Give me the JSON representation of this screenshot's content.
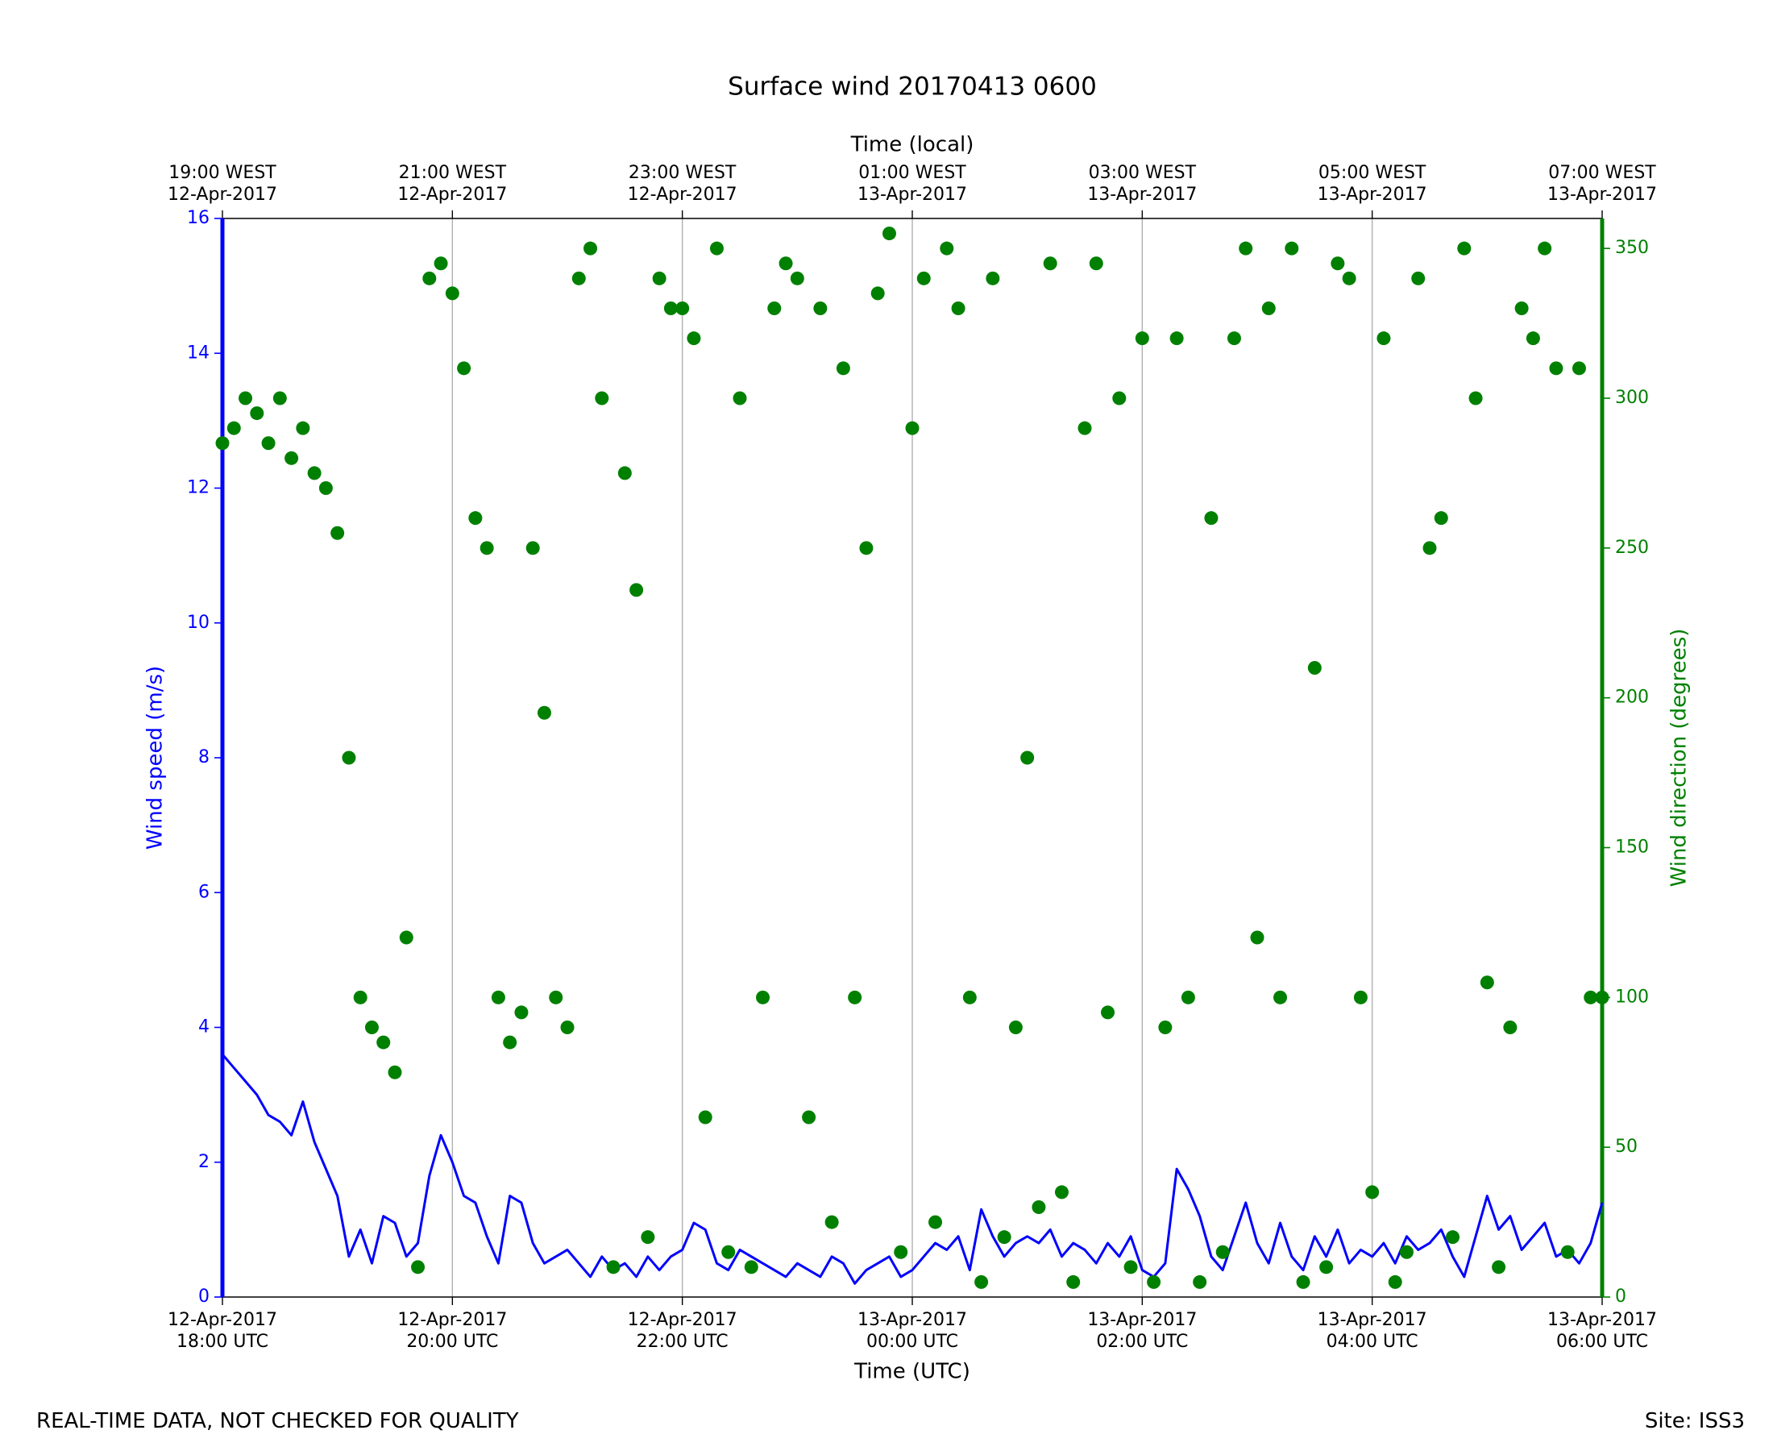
{
  "chart_data": {
    "type": "line+scatter",
    "title": "Surface wind 20170413 0600",
    "xlabel": "Time (UTC)",
    "x2label": "Time (local)",
    "ylabel": "Wind speed (m/s)",
    "y2label": "Wind direction (degrees)",
    "footer_left": "REAL-TIME DATA, NOT CHECKED FOR QUALITY",
    "footer_right": "Site: ISS3",
    "xlim": [
      "2017-04-12T18:00",
      "2017-04-13T06:00"
    ],
    "xticks": [
      {
        "value": "2017-04-12T18:00",
        "label": "12-Apr-2017\n18:00 UTC"
      },
      {
        "value": "2017-04-12T20:00",
        "label": "12-Apr-2017\n20:00 UTC"
      },
      {
        "value": "2017-04-12T22:00",
        "label": "12-Apr-2017\n22:00 UTC"
      },
      {
        "value": "2017-04-13T00:00",
        "label": "13-Apr-2017\n00:00 UTC"
      },
      {
        "value": "2017-04-13T02:00",
        "label": "13-Apr-2017\n02:00 UTC"
      },
      {
        "value": "2017-04-13T04:00",
        "label": "13-Apr-2017\n04:00 UTC"
      },
      {
        "value": "2017-04-13T06:00",
        "label": "13-Apr-2017\n06:00 UTC"
      }
    ],
    "x2ticks": [
      {
        "value": "2017-04-12T18:00",
        "label": "19:00 WEST\n12-Apr-2017"
      },
      {
        "value": "2017-04-12T20:00",
        "label": "21:00 WEST\n12-Apr-2017"
      },
      {
        "value": "2017-04-12T22:00",
        "label": "23:00 WEST\n12-Apr-2017"
      },
      {
        "value": "2017-04-13T00:00",
        "label": "01:00 WEST\n13-Apr-2017"
      },
      {
        "value": "2017-04-13T02:00",
        "label": "03:00 WEST\n13-Apr-2017"
      },
      {
        "value": "2017-04-13T04:00",
        "label": "05:00 WEST\n13-Apr-2017"
      },
      {
        "value": "2017-04-13T06:00",
        "label": "07:00 WEST\n13-Apr-2017"
      }
    ],
    "ylim": [
      0,
      16
    ],
    "yticks": [
      0,
      2,
      4,
      6,
      8,
      10,
      12,
      14,
      16
    ],
    "y2lim": [
      0,
      360
    ],
    "y2ticks": [
      0,
      50,
      100,
      150,
      200,
      250,
      300,
      350
    ],
    "grid": "x",
    "x": [
      "2017-04-12T18:00",
      "2017-04-12T18:06",
      "2017-04-12T18:12",
      "2017-04-12T18:18",
      "2017-04-12T18:24",
      "2017-04-12T18:30",
      "2017-04-12T18:36",
      "2017-04-12T18:42",
      "2017-04-12T18:48",
      "2017-04-12T18:54",
      "2017-04-12T19:00",
      "2017-04-12T19:06",
      "2017-04-12T19:12",
      "2017-04-12T19:18",
      "2017-04-12T19:24",
      "2017-04-12T19:30",
      "2017-04-12T19:36",
      "2017-04-12T19:42",
      "2017-04-12T19:48",
      "2017-04-12T19:54",
      "2017-04-12T20:00",
      "2017-04-12T20:06",
      "2017-04-12T20:12",
      "2017-04-12T20:18",
      "2017-04-12T20:24",
      "2017-04-12T20:30",
      "2017-04-12T20:36",
      "2017-04-12T20:42",
      "2017-04-12T20:48",
      "2017-04-12T20:54",
      "2017-04-12T21:00",
      "2017-04-12T21:06",
      "2017-04-12T21:12",
      "2017-04-12T21:18",
      "2017-04-12T21:24",
      "2017-04-12T21:30",
      "2017-04-12T21:36",
      "2017-04-12T21:42",
      "2017-04-12T21:48",
      "2017-04-12T21:54",
      "2017-04-12T22:00",
      "2017-04-12T22:06",
      "2017-04-12T22:12",
      "2017-04-12T22:18",
      "2017-04-12T22:24",
      "2017-04-12T22:30",
      "2017-04-12T22:36",
      "2017-04-12T22:42",
      "2017-04-12T22:48",
      "2017-04-12T22:54",
      "2017-04-12T23:00",
      "2017-04-12T23:06",
      "2017-04-12T23:12",
      "2017-04-12T23:18",
      "2017-04-12T23:24",
      "2017-04-12T23:30",
      "2017-04-12T23:36",
      "2017-04-12T23:42",
      "2017-04-12T23:48",
      "2017-04-12T23:54",
      "2017-04-13T00:00",
      "2017-04-13T00:06",
      "2017-04-13T00:12",
      "2017-04-13T00:18",
      "2017-04-13T00:24",
      "2017-04-13T00:30",
      "2017-04-13T00:36",
      "2017-04-13T00:42",
      "2017-04-13T00:48",
      "2017-04-13T00:54",
      "2017-04-13T01:00",
      "2017-04-13T01:06",
      "2017-04-13T01:12",
      "2017-04-13T01:18",
      "2017-04-13T01:24",
      "2017-04-13T01:30",
      "2017-04-13T01:36",
      "2017-04-13T01:42",
      "2017-04-13T01:48",
      "2017-04-13T01:54",
      "2017-04-13T02:00",
      "2017-04-13T02:06",
      "2017-04-13T02:12",
      "2017-04-13T02:18",
      "2017-04-13T02:24",
      "2017-04-13T02:30",
      "2017-04-13T02:36",
      "2017-04-13T02:42",
      "2017-04-13T02:48",
      "2017-04-13T02:54",
      "2017-04-13T03:00",
      "2017-04-13T03:06",
      "2017-04-13T03:12",
      "2017-04-13T03:18",
      "2017-04-13T03:24",
      "2017-04-13T03:30",
      "2017-04-13T03:36",
      "2017-04-13T03:42",
      "2017-04-13T03:48",
      "2017-04-13T03:54",
      "2017-04-13T04:00",
      "2017-04-13T04:06",
      "2017-04-13T04:12",
      "2017-04-13T04:18",
      "2017-04-13T04:24",
      "2017-04-13T04:30",
      "2017-04-13T04:36",
      "2017-04-13T04:42",
      "2017-04-13T04:48",
      "2017-04-13T04:54",
      "2017-04-13T05:00",
      "2017-04-13T05:06",
      "2017-04-13T05:12",
      "2017-04-13T05:18",
      "2017-04-13T05:24",
      "2017-04-13T05:30",
      "2017-04-13T05:36",
      "2017-04-13T05:42",
      "2017-04-13T05:48",
      "2017-04-13T05:54",
      "2017-04-13T06:00"
    ],
    "series": [
      {
        "name": "Wind speed",
        "type": "line",
        "color": "#0000ff",
        "values": [
          3.6,
          3.4,
          3.2,
          3.0,
          2.7,
          2.6,
          2.4,
          2.9,
          2.3,
          1.9,
          1.5,
          0.6,
          1.0,
          0.5,
          1.2,
          1.1,
          0.6,
          0.8,
          1.8,
          2.4,
          2.0,
          1.5,
          1.4,
          0.9,
          0.5,
          1.5,
          1.4,
          0.8,
          0.5,
          0.6,
          0.7,
          0.5,
          0.3,
          0.6,
          0.4,
          0.5,
          0.3,
          0.6,
          0.4,
          0.6,
          0.7,
          1.1,
          1.0,
          0.5,
          0.4,
          0.7,
          0.6,
          0.5,
          0.4,
          0.3,
          0.5,
          0.4,
          0.3,
          0.6,
          0.5,
          0.2,
          0.4,
          0.5,
          0.6,
          0.3,
          0.4,
          0.6,
          0.8,
          0.7,
          0.9,
          0.4,
          1.3,
          0.9,
          0.6,
          0.8,
          0.9,
          0.8,
          1.0,
          0.6,
          0.8,
          0.7,
          0.5,
          0.8,
          0.6,
          0.9,
          0.4,
          0.3,
          0.5,
          1.9,
          1.6,
          1.2,
          0.6,
          0.4,
          0.9,
          1.4,
          0.8,
          0.5,
          1.1,
          0.6,
          0.4,
          0.9,
          0.6,
          1.0,
          0.5,
          0.7,
          0.6,
          0.8,
          0.5,
          0.9,
          0.7,
          0.8,
          1.0,
          0.6,
          0.3,
          0.9,
          1.5,
          1.0,
          1.2,
          0.7,
          0.9,
          1.1,
          0.6,
          0.7,
          0.5,
          0.8,
          1.4
        ]
      },
      {
        "name": "Wind direction",
        "type": "scatter",
        "axis": "y2",
        "color": "#008000",
        "values": [
          285,
          290,
          300,
          295,
          285,
          300,
          280,
          290,
          275,
          270,
          255,
          180,
          100,
          90,
          85,
          75,
          120,
          10,
          340,
          345,
          335,
          310,
          260,
          250,
          100,
          85,
          95,
          250,
          195,
          100,
          90,
          340,
          350,
          300,
          10,
          275,
          236,
          20,
          340,
          330,
          330,
          320,
          60,
          350,
          15,
          300,
          10,
          100,
          330,
          345,
          340,
          60,
          330,
          25,
          310,
          100,
          250,
          335,
          355,
          15,
          290,
          340,
          25,
          350,
          330,
          100,
          5,
          340,
          20,
          90,
          180,
          30,
          345,
          35,
          5,
          290,
          345,
          95,
          300,
          10,
          320,
          5,
          90,
          320,
          100,
          5,
          260,
          15,
          320,
          350,
          120,
          330,
          100,
          350,
          5,
          210,
          10,
          345,
          340,
          100,
          35,
          320,
          5,
          15,
          340,
          250,
          260,
          20,
          350,
          300,
          105,
          10,
          90,
          330,
          320,
          350,
          310,
          15,
          310,
          100,
          100
        ]
      }
    ]
  }
}
